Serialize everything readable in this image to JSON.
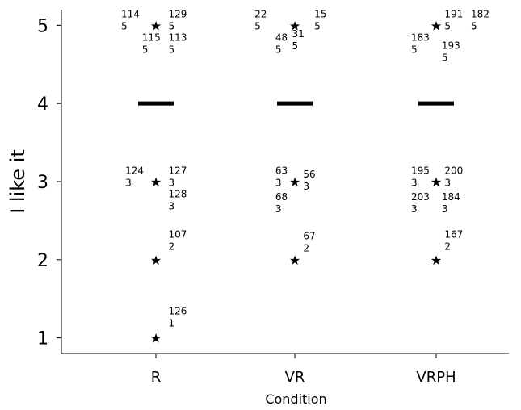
{
  "chart_data": {
    "type": "scatter",
    "title": "",
    "xlabel": "Condition",
    "ylabel": "I like it",
    "categories": [
      "R",
      "VR",
      "VRPH"
    ],
    "yticks": [
      1,
      2,
      3,
      4,
      5
    ],
    "ylim": [
      0.8,
      5.2
    ],
    "grid": false,
    "legend": "none",
    "series": [
      {
        "category": "R",
        "outliers": [
          5,
          3,
          2,
          1
        ],
        "median": 4,
        "annotations": [
          {
            "label": "114",
            "value": "5",
            "x_offset": -0.25,
            "y": 5.1
          },
          {
            "label": "129",
            "value": "5",
            "x_offset": 0.09,
            "y": 5.1
          },
          {
            "label": "115",
            "value": "5",
            "x_offset": -0.1,
            "y": 4.8
          },
          {
            "label": "113",
            "value": "5",
            "x_offset": 0.09,
            "y": 4.8
          },
          {
            "label": "124",
            "value": "3",
            "x_offset": -0.22,
            "y": 3.1
          },
          {
            "label": "127",
            "value": "3",
            "x_offset": 0.09,
            "y": 3.1
          },
          {
            "label": "128",
            "value": "3",
            "x_offset": 0.09,
            "y": 2.8
          },
          {
            "label": "107",
            "value": "2",
            "x_offset": 0.09,
            "y": 2.28
          },
          {
            "label": "126",
            "value": "1",
            "x_offset": 0.09,
            "y": 1.3
          }
        ]
      },
      {
        "category": "VR",
        "outliers": [
          5,
          3,
          2
        ],
        "median": 4,
        "annotations": [
          {
            "label": "22",
            "value": "5",
            "x_offset": -0.29,
            "y": 5.1
          },
          {
            "label": "15",
            "value": "5",
            "x_offset": 0.14,
            "y": 5.1
          },
          {
            "label": "48",
            "value": "5",
            "x_offset": -0.14,
            "y": 4.8
          },
          {
            "label": "31",
            "value": "5",
            "x_offset": -0.02,
            "y": 4.85
          },
          {
            "label": "63",
            "value": "3",
            "x_offset": -0.14,
            "y": 3.1
          },
          {
            "label": "56",
            "value": "3",
            "x_offset": 0.06,
            "y": 3.05
          },
          {
            "label": "68",
            "value": "3",
            "x_offset": -0.14,
            "y": 2.76
          },
          {
            "label": "67",
            "value": "2",
            "x_offset": 0.06,
            "y": 2.26
          }
        ]
      },
      {
        "category": "VRPH",
        "outliers": [
          5,
          3,
          2
        ],
        "median": 4,
        "annotations": [
          {
            "label": "191",
            "value": "5",
            "x_offset": 0.06,
            "y": 5.1
          },
          {
            "label": "182",
            "value": "5",
            "x_offset": 0.25,
            "y": 5.1
          },
          {
            "label": "183",
            "value": "5",
            "x_offset": -0.18,
            "y": 4.8
          },
          {
            "label": "193",
            "value": "5",
            "x_offset": 0.04,
            "y": 4.7
          },
          {
            "label": "195",
            "value": "3",
            "x_offset": -0.18,
            "y": 3.1
          },
          {
            "label": "200",
            "value": "3",
            "x_offset": 0.06,
            "y": 3.1
          },
          {
            "label": "203",
            "value": "3",
            "x_offset": -0.18,
            "y": 2.76
          },
          {
            "label": "184",
            "value": "3",
            "x_offset": 0.04,
            "y": 2.76
          },
          {
            "label": "167",
            "value": "2",
            "x_offset": 0.06,
            "y": 2.28
          }
        ]
      }
    ]
  }
}
